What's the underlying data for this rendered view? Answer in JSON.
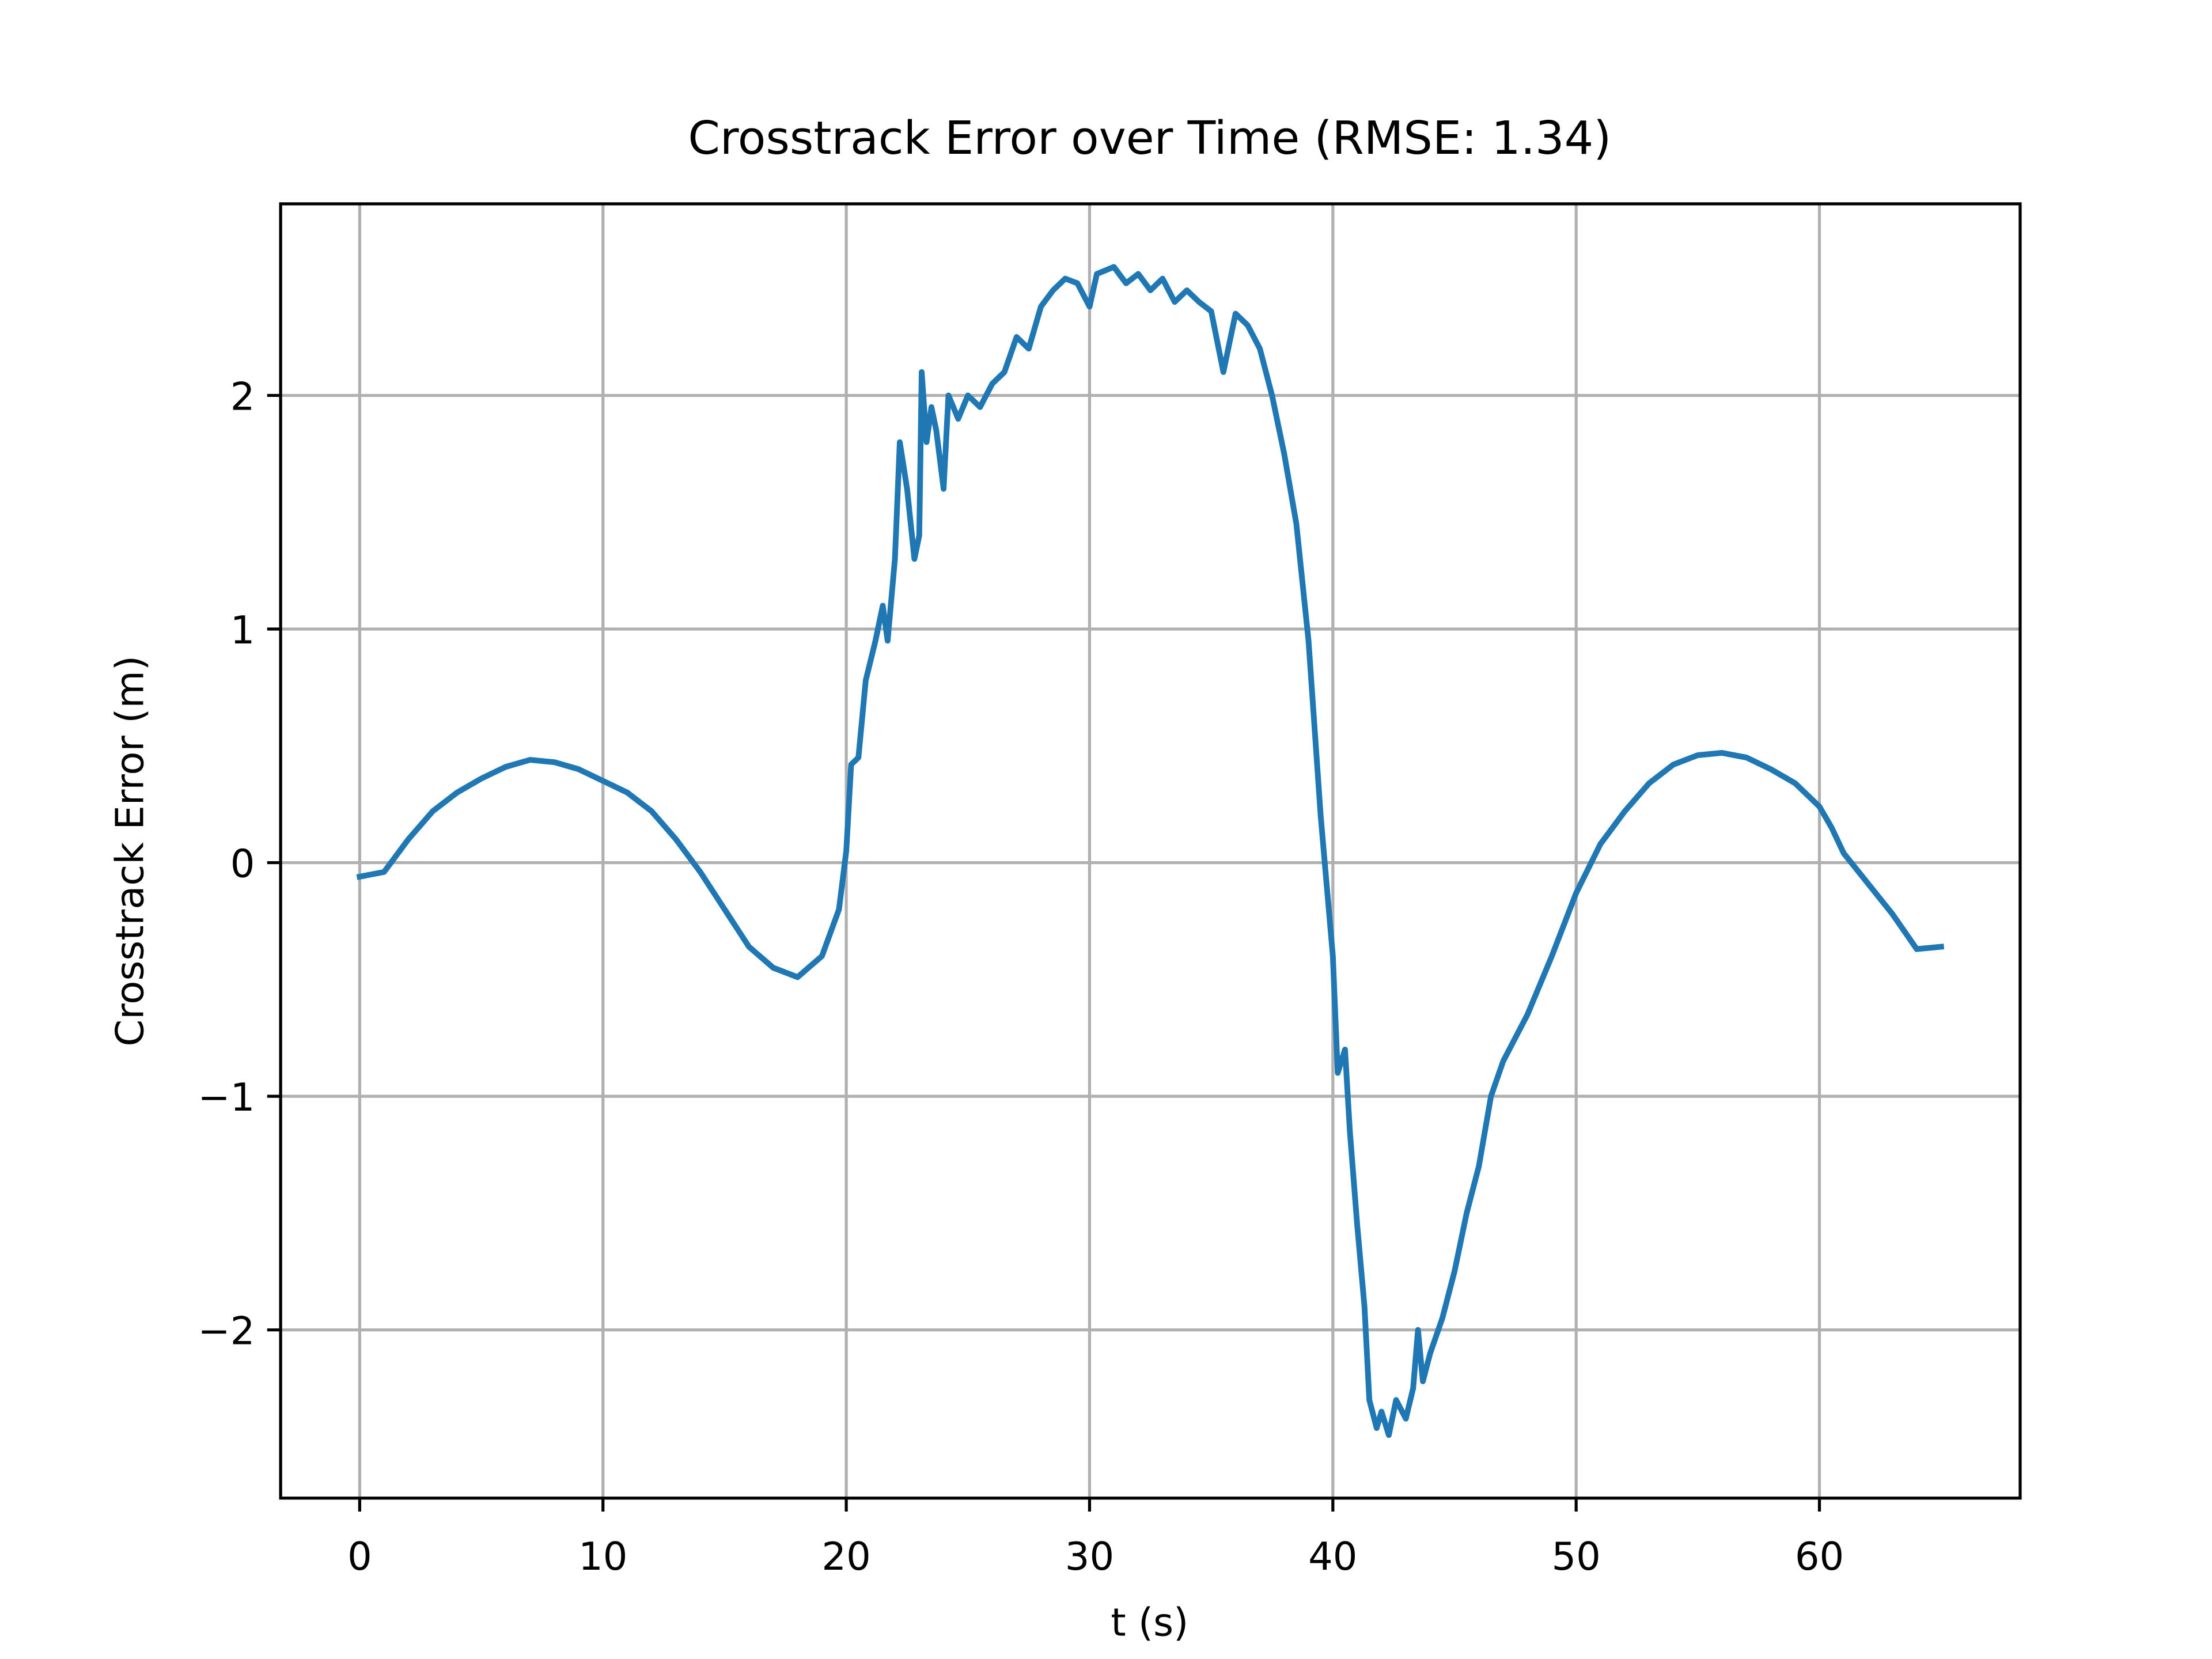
{
  "chart_data": {
    "type": "line",
    "title": "Crosstrack Error over Time (RMSE: 1.34)",
    "xlabel": "t (s)",
    "ylabel": "Crosstrack Error (m)",
    "color": "#1f77b4",
    "grid": true,
    "xlim": [
      -3.25,
      68.25
    ],
    "ylim": [
      -2.72,
      2.82
    ],
    "xticks": [
      0,
      10,
      20,
      30,
      40,
      50,
      60
    ],
    "yticks": [
      {
        "value": -2,
        "label": "−2"
      },
      {
        "value": -1,
        "label": "−1"
      },
      0,
      1,
      2
    ],
    "x": [
      0,
      1,
      2,
      3,
      4,
      5,
      6,
      7,
      8,
      9,
      10,
      11,
      12,
      13,
      14,
      15,
      16,
      17,
      18,
      19,
      19.7,
      20,
      20.2,
      20.5,
      20.8,
      21.2,
      21.5,
      21.7,
      22,
      22.2,
      22.5,
      22.8,
      23,
      23.1,
      23.3,
      23.5,
      23.7,
      24,
      24.2,
      24.6,
      25,
      25.5,
      26,
      26.5,
      27,
      27.5,
      28,
      28.5,
      29,
      29.5,
      30,
      30.3,
      31,
      31.5,
      32,
      32.5,
      33,
      33.5,
      34,
      34.5,
      35,
      35.5,
      36,
      36.5,
      37,
      37.5,
      38,
      38.5,
      39,
      39.5,
      40,
      40.2,
      40.5,
      40.7,
      41,
      41.3,
      41.5,
      41.8,
      42,
      42.3,
      42.6,
      43,
      43.3,
      43.5,
      43.7,
      44,
      44.5,
      45,
      45.5,
      46,
      46.5,
      47,
      48,
      49,
      50,
      51,
      52,
      53,
      54,
      55,
      56,
      57,
      58,
      59,
      60,
      60.5,
      61,
      62,
      63,
      64,
      65
    ],
    "values": [
      -0.06,
      -0.04,
      0.1,
      0.22,
      0.3,
      0.36,
      0.41,
      0.44,
      0.43,
      0.4,
      0.35,
      0.3,
      0.22,
      0.1,
      -0.04,
      -0.2,
      -0.36,
      -0.45,
      -0.49,
      -0.4,
      -0.2,
      0.05,
      0.42,
      0.45,
      0.78,
      0.95,
      1.1,
      0.95,
      1.3,
      1.8,
      1.6,
      1.3,
      1.4,
      2.1,
      1.8,
      1.95,
      1.85,
      1.6,
      2.0,
      1.9,
      2.0,
      1.95,
      2.05,
      2.1,
      2.25,
      2.2,
      2.38,
      2.45,
      2.5,
      2.48,
      2.38,
      2.52,
      2.55,
      2.48,
      2.52,
      2.45,
      2.5,
      2.4,
      2.45,
      2.4,
      2.36,
      2.1,
      2.35,
      2.3,
      2.2,
      2.0,
      1.75,
      1.45,
      0.95,
      0.2,
      -0.4,
      -0.9,
      -0.8,
      -1.15,
      -1.55,
      -1.9,
      -2.3,
      -2.42,
      -2.35,
      -2.45,
      -2.3,
      -2.38,
      -2.25,
      -2.0,
      -2.22,
      -2.1,
      -1.95,
      -1.75,
      -1.5,
      -1.3,
      -1.0,
      -0.85,
      -0.65,
      -0.4,
      -0.13,
      0.08,
      0.22,
      0.34,
      0.42,
      0.46,
      0.47,
      0.45,
      0.4,
      0.34,
      0.24,
      0.15,
      0.04,
      -0.09,
      -0.22,
      -0.37,
      -0.36
    ]
  }
}
